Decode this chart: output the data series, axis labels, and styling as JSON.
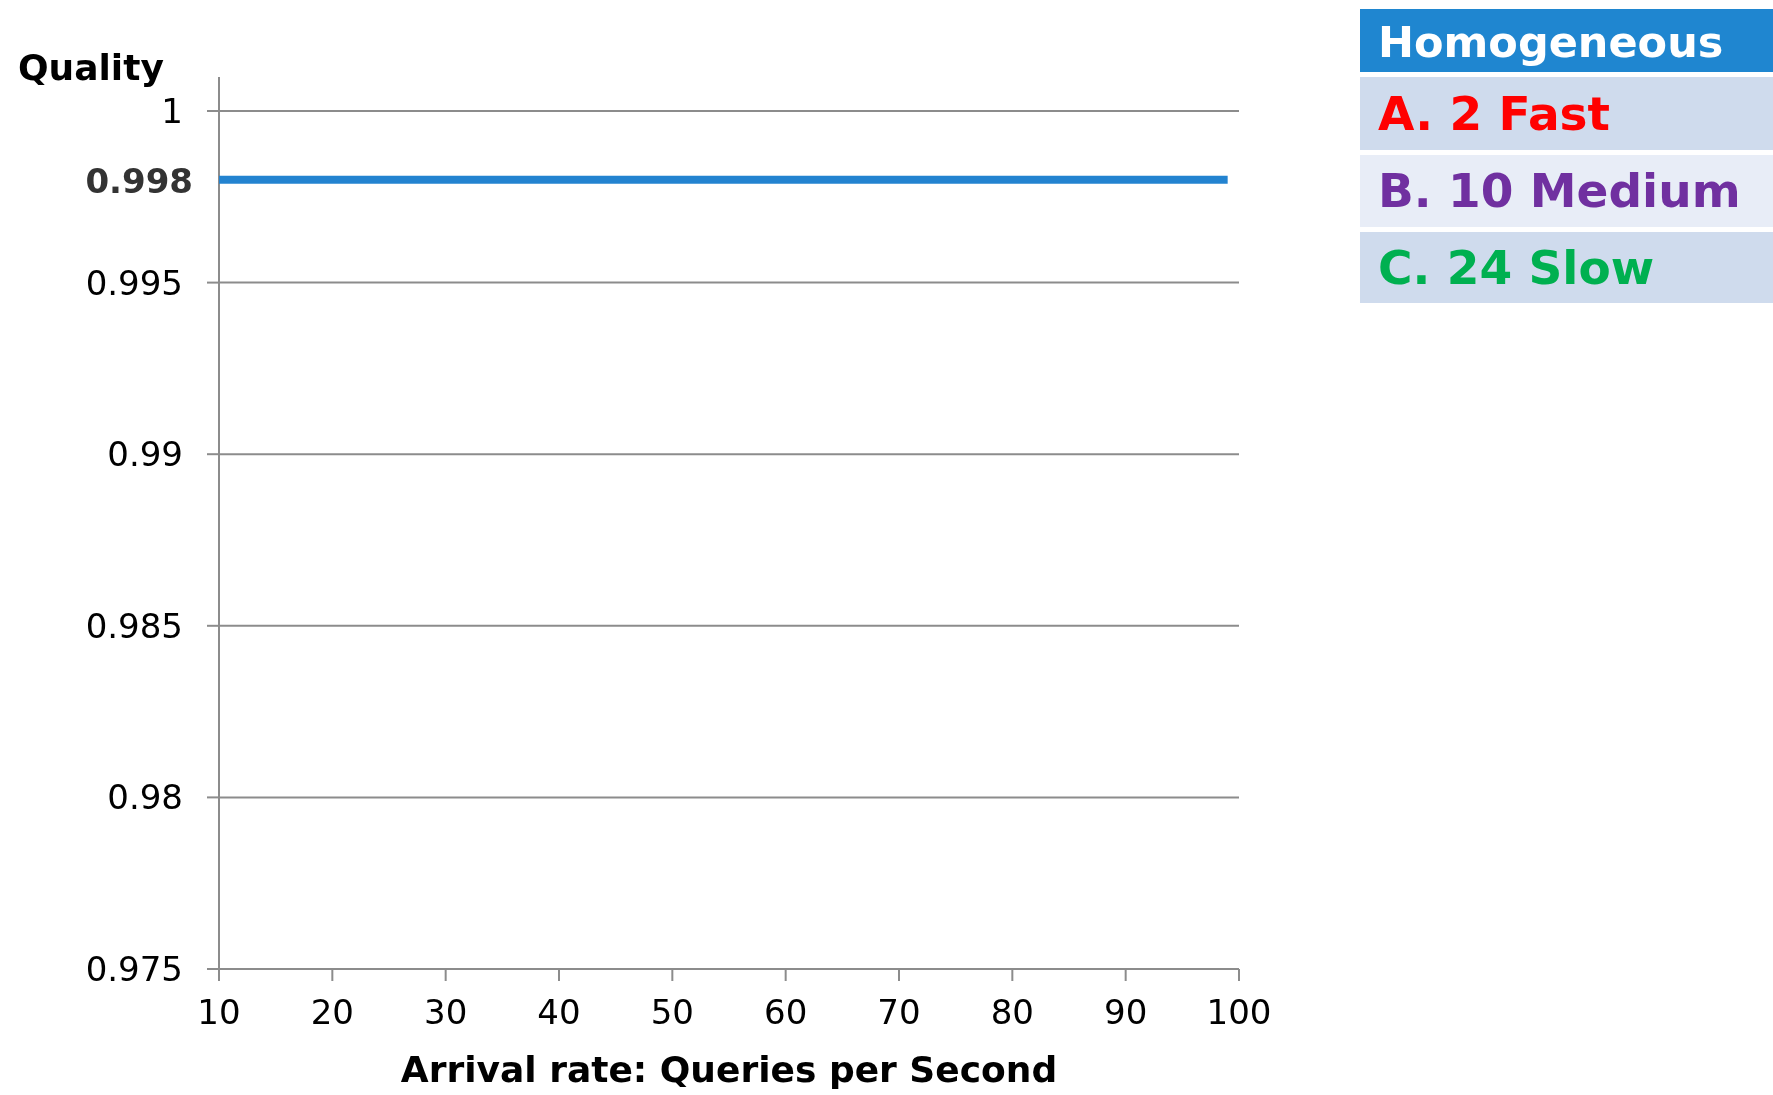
{
  "chart_data": {
    "type": "line",
    "xlabel": "Arrival rate: Queries per Second",
    "ylabel": "Quality",
    "x": [
      10,
      99
    ],
    "series": [
      {
        "color": "#2383d0",
        "values": [
          0.998,
          0.998
        ]
      }
    ],
    "xlim": [
      10,
      100
    ],
    "xticks": [
      10,
      20,
      30,
      40,
      50,
      60,
      70,
      80,
      90,
      100
    ],
    "ylim": [
      0.975,
      1
    ],
    "yticks": [
      0.975,
      0.98,
      0.985,
      0.99,
      0.995,
      1
    ],
    "grid": "y",
    "marker": "none",
    "line_style": "solid",
    "annotations": [
      {
        "text": "0.998",
        "x": 10,
        "y": 0.998
      },
      "Homogeneous",
      "A. 2 Fast",
      "B. 10 Medium",
      "C. 24 Slow"
    ]
  }
}
